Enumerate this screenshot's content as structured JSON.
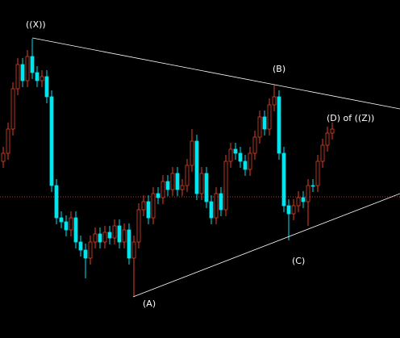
{
  "chart_data": {
    "type": "candlestick",
    "annotations": [
      "((X))",
      "(B)",
      "(D) of ((Z))",
      "(C)",
      "(A)"
    ],
    "up_color": "#e0402a",
    "down_color": "#00e5ee",
    "open": [
      200,
      210,
      240,
      290,
      320,
      300,
      330,
      310,
      300,
      305,
      280,
      170,
      130,
      125,
      115,
      130,
      100,
      90,
      80,
      100,
      110,
      100,
      112,
      105,
      120,
      100,
      115,
      80,
      100,
      140,
      150,
      130,
      160,
      155,
      175,
      165,
      185,
      165,
      170,
      195,
      225,
      160,
      185,
      150,
      130,
      160,
      140,
      200,
      215,
      210,
      200,
      190,
      210,
      230,
      255,
      240,
      270,
      280,
      210,
      145,
      135,
      145,
      155,
      150,
      170,
      170,
      200,
      220,
      235
    ],
    "high": [
      218,
      248,
      298,
      328,
      328,
      338,
      352,
      318,
      313,
      313,
      288,
      178,
      138,
      133,
      138,
      138,
      108,
      98,
      108,
      118,
      118,
      120,
      120,
      128,
      128,
      123,
      123,
      108,
      148,
      158,
      158,
      168,
      168,
      183,
      183,
      193,
      193,
      178,
      203,
      240,
      233,
      193,
      193,
      158,
      168,
      168,
      208,
      223,
      223,
      218,
      208,
      218,
      238,
      263,
      263,
      278,
      295,
      288,
      218,
      153,
      153,
      163,
      163,
      178,
      178,
      208,
      228,
      243,
      248
    ],
    "low": [
      192,
      202,
      232,
      282,
      292,
      292,
      302,
      292,
      292,
      272,
      162,
      122,
      117,
      107,
      107,
      92,
      82,
      55,
      72,
      92,
      92,
      92,
      97,
      97,
      92,
      92,
      72,
      32,
      92,
      132,
      122,
      122,
      147,
      147,
      157,
      157,
      157,
      157,
      162,
      187,
      152,
      152,
      142,
      122,
      122,
      132,
      132,
      192,
      202,
      192,
      182,
      182,
      202,
      222,
      232,
      232,
      262,
      202,
      137,
      102,
      127,
      137,
      142,
      120,
      162,
      162,
      192,
      212,
      227
    ],
    "close": [
      210,
      240,
      290,
      320,
      300,
      330,
      310,
      300,
      305,
      280,
      170,
      130,
      125,
      115,
      130,
      100,
      90,
      80,
      100,
      110,
      100,
      112,
      105,
      120,
      100,
      115,
      80,
      100,
      140,
      150,
      130,
      160,
      155,
      175,
      165,
      185,
      165,
      170,
      195,
      225,
      160,
      185,
      150,
      130,
      160,
      140,
      200,
      215,
      210,
      200,
      190,
      210,
      230,
      255,
      240,
      270,
      280,
      210,
      145,
      135,
      145,
      155,
      150,
      170,
      170,
      200,
      220,
      235,
      240
    ]
  }
}
